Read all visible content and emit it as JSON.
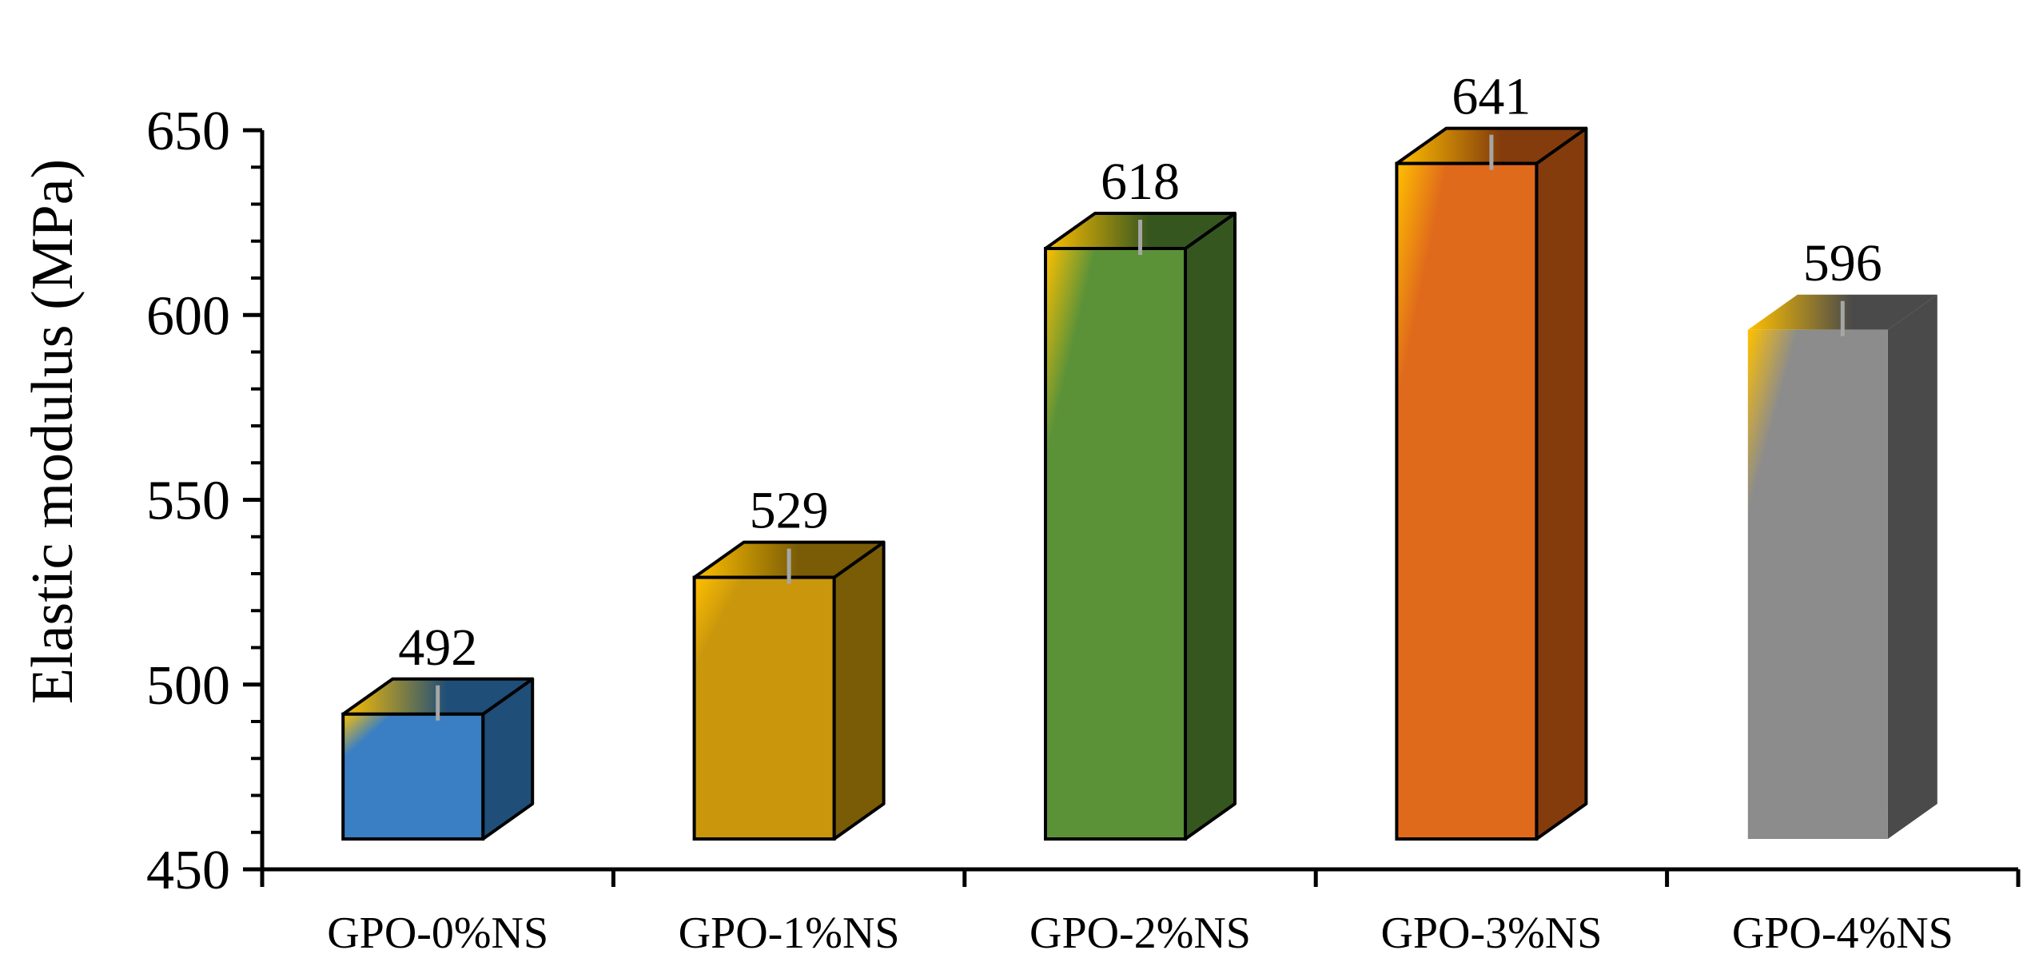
{
  "chart_data": {
    "type": "bar",
    "style": "3d-column",
    "title": "",
    "xlabel": "",
    "ylabel": "Elastic modulus (MPa)",
    "ylim": [
      450,
      650
    ],
    "yticks": [
      "450",
      "500",
      "550",
      "600",
      "650"
    ],
    "grid": false,
    "legend": "none",
    "error_bars": true,
    "categories": [
      "GPO-0%NS",
      "GPO-1%NS",
      "GPO-2%NS",
      "GPO-3%NS",
      "GPO-4%NS"
    ],
    "values": [
      492,
      529,
      618,
      641,
      596
    ],
    "data_labels": [
      "492",
      "529",
      "618",
      "641",
      "596"
    ],
    "colors": {
      "front": [
        "#3a7fc4",
        "#c9960c",
        "#5b9238",
        "#e06a1b",
        "#8c8c8c"
      ],
      "side": [
        "#1f4e78",
        "#7a5c06",
        "#36561f",
        "#843c0c",
        "#4a4a4a"
      ],
      "top_accent": "#ffc000",
      "error_bar": "#a6a6a6",
      "axis": "#000000"
    }
  }
}
